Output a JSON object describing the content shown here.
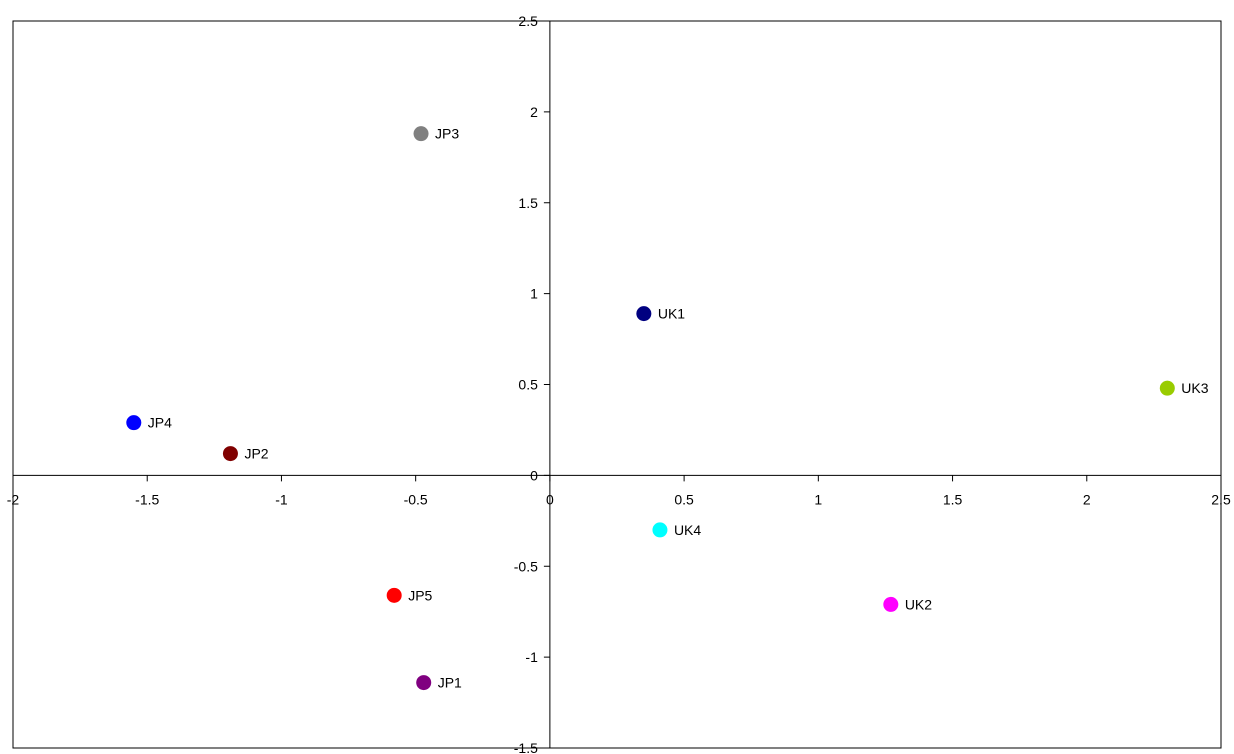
{
  "chart_data": {
    "type": "scatter",
    "title": "",
    "xlabel": "",
    "ylabel": "",
    "xlim": [
      -2,
      2.5
    ],
    "ylim": [
      -1.5,
      2.5
    ],
    "x_ticks": [
      -2,
      -1.5,
      -1,
      -0.5,
      0,
      0.5,
      1,
      1.5,
      2,
      2.5
    ],
    "y_ticks": [
      -1.5,
      -1,
      -0.5,
      0,
      0.5,
      1,
      1.5,
      2,
      2.5
    ],
    "x_tick_labels": [
      "-2",
      "-1.5",
      "-1",
      "-0.5",
      "0",
      "0.5",
      "1",
      "1.5",
      "2",
      "2.5"
    ],
    "y_tick_labels": [
      "-1.5",
      "-1",
      "-0.5",
      "0",
      "0.5",
      "1",
      "1.5",
      "2",
      "2.5"
    ],
    "grid": false,
    "legend": "none",
    "points": [
      {
        "label": "JP1",
        "x": -0.47,
        "y": -1.14,
        "color": "#800080"
      },
      {
        "label": "JP2",
        "x": -1.19,
        "y": 0.12,
        "color": "#800000"
      },
      {
        "label": "JP3",
        "x": -0.48,
        "y": 1.88,
        "color": "#808080"
      },
      {
        "label": "JP4",
        "x": -1.55,
        "y": 0.29,
        "color": "#0000FF"
      },
      {
        "label": "JP5",
        "x": -0.58,
        "y": -0.66,
        "color": "#FF0000"
      },
      {
        "label": "UK1",
        "x": 0.35,
        "y": 0.89,
        "color": "#000080"
      },
      {
        "label": "UK2",
        "x": 1.27,
        "y": -0.71,
        "color": "#FF00FF"
      },
      {
        "label": "UK3",
        "x": 2.3,
        "y": 0.48,
        "color": "#99CC00"
      },
      {
        "label": "UK4",
        "x": 0.41,
        "y": -0.3,
        "color": "#00FFFF"
      }
    ]
  }
}
